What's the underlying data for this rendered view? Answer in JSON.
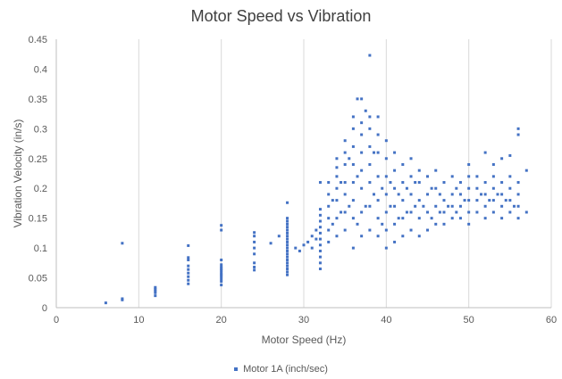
{
  "chart_data": {
    "type": "scatter",
    "title": "Motor Speed vs Vibration",
    "xlabel": "Motor Speed (Hz)",
    "ylabel": "Vibration Velocity (in/s)",
    "xlim": [
      0,
      60
    ],
    "ylim": [
      0,
      0.45
    ],
    "x_ticks": [
      "0",
      "10",
      "20",
      "30",
      "40",
      "50",
      "60"
    ],
    "y_ticks": [
      "0",
      "0.05",
      "0.1",
      "0.15",
      "0.2",
      "0.25",
      "0.3",
      "0.35",
      "0.4",
      "0.45"
    ],
    "grid": "vertical",
    "legend_position": "bottom",
    "series": [
      {
        "name": "Motor 1A (inch/sec)",
        "color": "#4472C4",
        "points": [
          [
            6,
            0.008
          ],
          [
            8,
            0.013
          ],
          [
            8,
            0.015
          ],
          [
            8,
            0.108
          ],
          [
            12,
            0.02
          ],
          [
            12,
            0.025
          ],
          [
            12,
            0.028
          ],
          [
            12,
            0.031
          ],
          [
            12,
            0.034
          ],
          [
            16,
            0.04
          ],
          [
            16,
            0.046
          ],
          [
            16,
            0.052
          ],
          [
            16,
            0.058
          ],
          [
            16,
            0.064
          ],
          [
            16,
            0.07
          ],
          [
            16,
            0.08
          ],
          [
            16,
            0.084
          ],
          [
            16,
            0.104
          ],
          [
            20,
            0.038
          ],
          [
            20,
            0.044
          ],
          [
            20,
            0.048
          ],
          [
            20,
            0.052
          ],
          [
            20,
            0.055
          ],
          [
            20,
            0.058
          ],
          [
            20,
            0.062
          ],
          [
            20,
            0.065
          ],
          [
            20,
            0.068
          ],
          [
            20,
            0.072
          ],
          [
            20,
            0.08
          ],
          [
            20,
            0.13
          ],
          [
            20,
            0.138
          ],
          [
            24,
            0.063
          ],
          [
            24,
            0.068
          ],
          [
            24,
            0.075
          ],
          [
            24,
            0.09
          ],
          [
            24,
            0.1
          ],
          [
            24,
            0.11
          ],
          [
            24,
            0.12
          ],
          [
            24,
            0.126
          ],
          [
            26,
            0.108
          ],
          [
            27,
            0.12
          ],
          [
            28,
            0.055
          ],
          [
            28,
            0.06
          ],
          [
            28,
            0.065
          ],
          [
            28,
            0.07
          ],
          [
            28,
            0.075
          ],
          [
            28,
            0.08
          ],
          [
            28,
            0.085
          ],
          [
            28,
            0.09
          ],
          [
            28,
            0.095
          ],
          [
            28,
            0.1
          ],
          [
            28,
            0.105
          ],
          [
            28,
            0.11
          ],
          [
            28,
            0.115
          ],
          [
            28,
            0.12
          ],
          [
            28,
            0.125
          ],
          [
            28,
            0.13
          ],
          [
            28,
            0.135
          ],
          [
            28,
            0.14
          ],
          [
            28,
            0.145
          ],
          [
            28,
            0.15
          ],
          [
            28,
            0.176
          ],
          [
            29,
            0.1
          ],
          [
            29.5,
            0.095
          ],
          [
            30,
            0.105
          ],
          [
            30.5,
            0.11
          ],
          [
            31,
            0.12
          ],
          [
            31,
            0.1
          ],
          [
            31.5,
            0.13
          ],
          [
            31.5,
            0.115
          ],
          [
            32,
            0.065
          ],
          [
            32,
            0.075
          ],
          [
            32,
            0.085
          ],
          [
            32,
            0.095
          ],
          [
            32,
            0.105
          ],
          [
            32,
            0.115
          ],
          [
            32,
            0.125
          ],
          [
            32,
            0.135
          ],
          [
            32,
            0.145
          ],
          [
            32,
            0.155
          ],
          [
            32,
            0.165
          ],
          [
            32,
            0.21
          ],
          [
            33,
            0.11
          ],
          [
            33,
            0.13
          ],
          [
            33,
            0.15
          ],
          [
            33,
            0.17
          ],
          [
            33,
            0.19
          ],
          [
            33,
            0.21
          ],
          [
            33.5,
            0.14
          ],
          [
            33.5,
            0.18
          ],
          [
            34,
            0.12
          ],
          [
            34,
            0.15
          ],
          [
            34,
            0.18
          ],
          [
            34,
            0.2
          ],
          [
            34,
            0.22
          ],
          [
            34,
            0.235
          ],
          [
            34,
            0.25
          ],
          [
            34.5,
            0.16
          ],
          [
            34.5,
            0.21
          ],
          [
            35,
            0.13
          ],
          [
            35,
            0.16
          ],
          [
            35,
            0.19
          ],
          [
            35,
            0.21
          ],
          [
            35,
            0.24
          ],
          [
            35,
            0.26
          ],
          [
            35,
            0.28
          ],
          [
            35.5,
            0.17
          ],
          [
            35.5,
            0.25
          ],
          [
            36,
            0.1
          ],
          [
            36,
            0.15
          ],
          [
            36,
            0.18
          ],
          [
            36,
            0.21
          ],
          [
            36,
            0.24
          ],
          [
            36,
            0.27
          ],
          [
            36,
            0.3
          ],
          [
            36,
            0.32
          ],
          [
            36.5,
            0.35
          ],
          [
            36.5,
            0.22
          ],
          [
            36.5,
            0.14
          ],
          [
            37,
            0.12
          ],
          [
            37,
            0.16
          ],
          [
            37,
            0.2
          ],
          [
            37,
            0.23
          ],
          [
            37,
            0.26
          ],
          [
            37,
            0.29
          ],
          [
            37,
            0.31
          ],
          [
            37,
            0.35
          ],
          [
            37.5,
            0.33
          ],
          [
            37.5,
            0.17
          ],
          [
            38,
            0.13
          ],
          [
            38,
            0.17
          ],
          [
            38,
            0.21
          ],
          [
            38,
            0.24
          ],
          [
            38,
            0.27
          ],
          [
            38,
            0.3
          ],
          [
            38,
            0.32
          ],
          [
            38,
            0.423
          ],
          [
            38.5,
            0.19
          ],
          [
            38.5,
            0.26
          ],
          [
            39,
            0.12
          ],
          [
            39,
            0.15
          ],
          [
            39,
            0.18
          ],
          [
            39,
            0.22
          ],
          [
            39,
            0.26
          ],
          [
            39,
            0.29
          ],
          [
            39,
            0.32
          ],
          [
            39.5,
            0.2
          ],
          [
            39.5,
            0.14
          ],
          [
            40,
            0.1
          ],
          [
            40,
            0.13
          ],
          [
            40,
            0.16
          ],
          [
            40,
            0.19
          ],
          [
            40,
            0.22
          ],
          [
            40,
            0.25
          ],
          [
            40,
            0.28
          ],
          [
            40.5,
            0.17
          ],
          [
            40.5,
            0.21
          ],
          [
            41,
            0.11
          ],
          [
            41,
            0.14
          ],
          [
            41,
            0.17
          ],
          [
            41,
            0.2
          ],
          [
            41,
            0.23
          ],
          [
            41,
            0.26
          ],
          [
            41.5,
            0.15
          ],
          [
            41.5,
            0.19
          ],
          [
            42,
            0.12
          ],
          [
            42,
            0.15
          ],
          [
            42,
            0.18
          ],
          [
            42,
            0.21
          ],
          [
            42,
            0.24
          ],
          [
            42.5,
            0.16
          ],
          [
            42.5,
            0.2
          ],
          [
            43,
            0.13
          ],
          [
            43,
            0.16
          ],
          [
            43,
            0.19
          ],
          [
            43,
            0.22
          ],
          [
            43,
            0.25
          ],
          [
            43.5,
            0.17
          ],
          [
            43.5,
            0.21
          ],
          [
            44,
            0.12
          ],
          [
            44,
            0.15
          ],
          [
            44,
            0.18
          ],
          [
            44,
            0.21
          ],
          [
            44,
            0.23
          ],
          [
            44.5,
            0.17
          ],
          [
            45,
            0.13
          ],
          [
            45,
            0.16
          ],
          [
            45,
            0.19
          ],
          [
            45,
            0.22
          ],
          [
            45.5,
            0.15
          ],
          [
            45.5,
            0.2
          ],
          [
            46,
            0.14
          ],
          [
            46,
            0.17
          ],
          [
            46,
            0.2
          ],
          [
            46,
            0.23
          ],
          [
            46.5,
            0.16
          ],
          [
            46.5,
            0.19
          ],
          [
            47,
            0.14
          ],
          [
            47,
            0.16
          ],
          [
            47,
            0.18
          ],
          [
            47,
            0.21
          ],
          [
            47.5,
            0.17
          ],
          [
            48,
            0.15
          ],
          [
            48,
            0.17
          ],
          [
            48,
            0.19
          ],
          [
            48,
            0.22
          ],
          [
            48.5,
            0.16
          ],
          [
            48.5,
            0.2
          ],
          [
            49,
            0.15
          ],
          [
            49,
            0.17
          ],
          [
            49,
            0.19
          ],
          [
            49,
            0.21
          ],
          [
            49.5,
            0.18
          ],
          [
            50,
            0.14
          ],
          [
            50,
            0.16
          ],
          [
            50,
            0.18
          ],
          [
            50,
            0.2
          ],
          [
            50,
            0.22
          ],
          [
            50,
            0.24
          ],
          [
            51,
            0.16
          ],
          [
            51,
            0.18
          ],
          [
            51,
            0.2
          ],
          [
            51,
            0.22
          ],
          [
            51.5,
            0.19
          ],
          [
            52,
            0.15
          ],
          [
            52,
            0.17
          ],
          [
            52,
            0.19
          ],
          [
            52,
            0.21
          ],
          [
            52,
            0.26
          ],
          [
            52.5,
            0.18
          ],
          [
            53,
            0.16
          ],
          [
            53,
            0.18
          ],
          [
            53,
            0.2
          ],
          [
            53,
            0.22
          ],
          [
            53,
            0.24
          ],
          [
            53.5,
            0.19
          ],
          [
            54,
            0.15
          ],
          [
            54,
            0.17
          ],
          [
            54,
            0.19
          ],
          [
            54,
            0.21
          ],
          [
            54,
            0.25
          ],
          [
            54.5,
            0.18
          ],
          [
            55,
            0.16
          ],
          [
            55,
            0.18
          ],
          [
            55,
            0.2
          ],
          [
            55,
            0.22
          ],
          [
            55,
            0.255
          ],
          [
            55.5,
            0.17
          ],
          [
            56,
            0.15
          ],
          [
            56,
            0.17
          ],
          [
            56,
            0.19
          ],
          [
            56,
            0.21
          ],
          [
            56,
            0.29
          ],
          [
            56,
            0.3
          ],
          [
            57,
            0.16
          ],
          [
            57,
            0.23
          ]
        ]
      }
    ]
  }
}
